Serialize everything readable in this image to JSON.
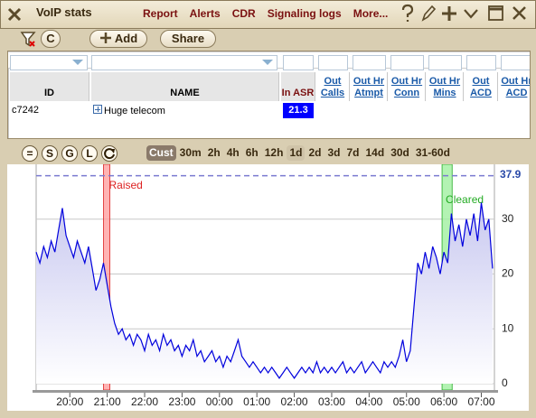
{
  "window": {
    "title": "VoIP stats",
    "menu": [
      "Report",
      "Alerts",
      "CDR",
      "Signaling logs",
      "More..."
    ]
  },
  "toolbar": {
    "clear": "C",
    "add": "Add",
    "share": "Share"
  },
  "table": {
    "headers": [
      "ID",
      "NAME",
      "In ASR",
      "Out Calls",
      "Out Hr Atmpt",
      "Out Hr Conn",
      "Out Hr Mins",
      "Out ACD",
      "Out Hr ACD"
    ],
    "rows": [
      {
        "id": "c7242",
        "name": "Huge telecom",
        "in_asr": 21.3
      }
    ]
  },
  "chart_controls": {
    "buttons": [
      "=",
      "S",
      "G",
      "L"
    ],
    "ranges": [
      "Cust",
      "30m",
      "2h",
      "4h",
      "6h",
      "12h",
      "1d",
      "2d",
      "3d",
      "7d",
      "14d",
      "30d",
      "31-60d"
    ],
    "selected_range": 0,
    "highlighted_range": 6
  },
  "chart_data": {
    "type": "line",
    "color": "#0000dd",
    "x": [
      19.1,
      19.2,
      19.3,
      19.4,
      19.5,
      19.6,
      19.7,
      19.8,
      19.9,
      20.0,
      20.1,
      20.2,
      20.3,
      20.4,
      20.5,
      20.6,
      20.7,
      20.8,
      20.9,
      21.0,
      21.1,
      21.2,
      21.3,
      21.4,
      21.5,
      21.6,
      21.7,
      21.8,
      21.9,
      22.0,
      22.1,
      22.2,
      22.3,
      22.4,
      22.5,
      22.6,
      22.7,
      22.8,
      22.9,
      23.0,
      23.1,
      23.2,
      23.3,
      23.4,
      23.5,
      23.6,
      23.7,
      23.8,
      23.9,
      24.0,
      24.1,
      24.2,
      24.3,
      24.4,
      24.5,
      24.6,
      24.7,
      24.8,
      24.9,
      25.0,
      25.1,
      25.2,
      25.3,
      25.4,
      25.5,
      25.6,
      25.7,
      25.8,
      25.9,
      26.0,
      26.1,
      26.2,
      26.3,
      26.4,
      26.5,
      26.6,
      26.7,
      26.8,
      26.9,
      27.0,
      27.1,
      27.2,
      27.3,
      27.4,
      27.5,
      27.6,
      27.7,
      27.8,
      27.9,
      28.0,
      28.1,
      28.2,
      28.3,
      28.4,
      28.5,
      28.6,
      28.7,
      28.8,
      28.9,
      29.0,
      29.1,
      29.2,
      29.3,
      29.4,
      29.5,
      29.6,
      29.7,
      29.8,
      29.9,
      30.0,
      30.1,
      30.2,
      30.3,
      30.4,
      30.5,
      30.6,
      30.7,
      30.8,
      30.9,
      31.0,
      31.1,
      31.2,
      31.3
    ],
    "values": [
      24,
      22,
      25,
      23,
      26,
      24,
      28,
      32,
      27,
      25,
      23,
      26,
      24,
      22,
      25,
      21,
      17,
      19,
      22,
      18,
      14,
      11,
      9,
      10,
      8,
      9,
      7,
      9,
      8,
      6,
      9,
      7,
      8,
      6,
      9,
      7,
      8,
      6,
      7,
      5,
      7,
      6,
      8,
      5,
      6,
      4,
      5,
      6,
      4,
      5,
      3,
      5,
      4,
      6,
      8,
      5,
      4,
      3,
      4,
      3,
      2,
      3,
      2,
      3,
      2,
      1,
      2,
      3,
      2,
      1,
      2,
      3,
      2,
      3,
      2,
      4,
      2,
      3,
      2,
      3,
      2,
      3,
      4,
      2,
      3,
      2,
      3,
      4,
      2,
      3,
      4,
      3,
      2,
      4,
      3,
      4,
      3,
      5,
      8,
      4,
      6,
      14,
      22,
      20,
      24,
      21,
      25,
      23,
      20,
      24,
      22,
      31,
      26,
      29,
      25,
      30,
      27,
      31,
      26,
      33,
      28,
      30,
      21
    ],
    "xlim": [
      19.1,
      31.35
    ],
    "ylim": [
      -1.15,
      39
    ],
    "xticks": [
      {
        "value": 20,
        "label": "20:00"
      },
      {
        "value": 21,
        "label": "21:00"
      },
      {
        "value": 22,
        "label": "22:00"
      },
      {
        "value": 23,
        "label": "23:00"
      },
      {
        "value": 24,
        "label": "00:00"
      },
      {
        "value": 25,
        "label": "01:00"
      },
      {
        "value": 26,
        "label": "02:00"
      },
      {
        "value": 27,
        "label": "03:00"
      },
      {
        "value": 28,
        "label": "04:00"
      },
      {
        "value": 29,
        "label": "05:00"
      },
      {
        "value": 30,
        "label": "06:00"
      },
      {
        "value": 31,
        "label": "07:00"
      }
    ],
    "yticks": [
      0,
      10,
      20,
      30
    ],
    "max_line": 37.9,
    "bands": [
      {
        "label": "Raised",
        "start": 20.9,
        "end": 21.07,
        "color": "#ffa0a0",
        "label_color": "#dd2222"
      },
      {
        "label": "Cleared",
        "start": 29.95,
        "end": 30.22,
        "color": "#a0f0a0",
        "label_color": "#22aa22"
      }
    ],
    "grid": true
  }
}
